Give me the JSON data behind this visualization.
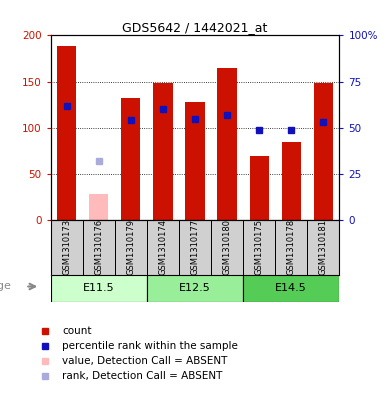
{
  "title": "GDS5642 / 1442021_at",
  "samples": [
    "GSM1310173",
    "GSM1310176",
    "GSM1310179",
    "GSM1310174",
    "GSM1310177",
    "GSM1310180",
    "GSM1310175",
    "GSM1310178",
    "GSM1310181"
  ],
  "count_values": [
    188,
    0,
    132,
    148,
    128,
    165,
    70,
    85,
    148
  ],
  "count_absent": [
    0,
    28,
    0,
    0,
    0,
    0,
    0,
    0,
    0
  ],
  "rank_values": [
    62,
    0,
    54,
    60,
    55,
    57,
    49,
    49,
    53
  ],
  "rank_absent": [
    0,
    32,
    0,
    0,
    0,
    0,
    0,
    0,
    0
  ],
  "absent_flags": [
    false,
    true,
    false,
    false,
    false,
    false,
    false,
    false,
    false
  ],
  "age_groups": [
    {
      "label": "E11.5",
      "start": 0,
      "end": 3
    },
    {
      "label": "E12.5",
      "start": 3,
      "end": 6
    },
    {
      "label": "E14.5",
      "start": 6,
      "end": 9
    }
  ],
  "ylim_left": [
    0,
    200
  ],
  "ylim_right": [
    0,
    100
  ],
  "yticks_left": [
    0,
    50,
    100,
    150,
    200
  ],
  "yticks_right": [
    0,
    25,
    50,
    75,
    100
  ],
  "ytick_labels_left": [
    "0",
    "50",
    "100",
    "150",
    "200"
  ],
  "ytick_labels_right": [
    "0",
    "25",
    "50",
    "75",
    "100%"
  ],
  "bar_color_red": "#cc1100",
  "bar_color_pink": "#ffbbbb",
  "dot_color_blue": "#1111bb",
  "dot_color_lightblue": "#aaaadd",
  "age_group_colors_light": "#ccffcc",
  "age_group_colors_medium": "#99ee99",
  "age_group_colors_dark": "#55cc55",
  "legend_items": [
    {
      "color": "#cc1100",
      "label": "count"
    },
    {
      "color": "#1111bb",
      "label": "percentile rank within the sample"
    },
    {
      "color": "#ffbbbb",
      "label": "value, Detection Call = ABSENT"
    },
    {
      "color": "#aaaadd",
      "label": "rank, Detection Call = ABSENT"
    }
  ]
}
